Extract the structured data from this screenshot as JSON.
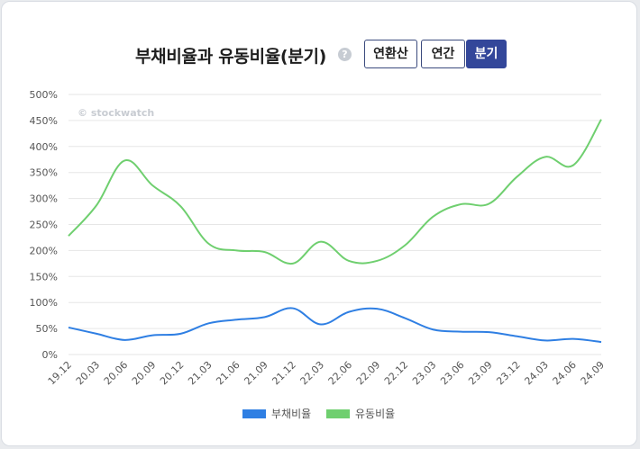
{
  "header": {
    "title": "부채비율과 유동비율(분기)",
    "help_icon": "?",
    "buttons": [
      {
        "label": "연환산",
        "active": false
      },
      {
        "label": "연간",
        "active": false
      },
      {
        "label": "분기",
        "active": true
      }
    ]
  },
  "watermark": "© stockwatch",
  "colors": {
    "debt": "#2f7fe3",
    "current": "#6fcf6f",
    "grid": "#e6e6e6",
    "active_button": "#33479a"
  },
  "chart_data": {
    "type": "line",
    "categories": [
      "19.12",
      "20.03",
      "20.06",
      "20.09",
      "20.12",
      "21.03",
      "21.06",
      "21.09",
      "21.12",
      "22.03",
      "22.06",
      "22.09",
      "22.12",
      "23.03",
      "23.06",
      "23.09",
      "23.12",
      "24.03",
      "24.06",
      "24.09"
    ],
    "series": [
      {
        "name": "부채비율",
        "values": [
          52,
          40,
          28,
          37,
          40,
          60,
          67,
          72,
          89,
          58,
          82,
          88,
          70,
          48,
          44,
          43,
          35,
          27,
          30,
          24
        ]
      },
      {
        "name": "유동비율",
        "values": [
          228,
          287,
          373,
          325,
          285,
          213,
          200,
          197,
          175,
          217,
          180,
          180,
          210,
          265,
          289,
          290,
          342,
          380,
          364,
          452
        ]
      }
    ],
    "ylim": [
      0,
      500
    ],
    "yticks": [
      "0%",
      "50%",
      "100%",
      "150%",
      "200%",
      "250%",
      "300%",
      "350%",
      "400%",
      "450%",
      "500%"
    ],
    "grid": true,
    "legend": "bottom"
  }
}
